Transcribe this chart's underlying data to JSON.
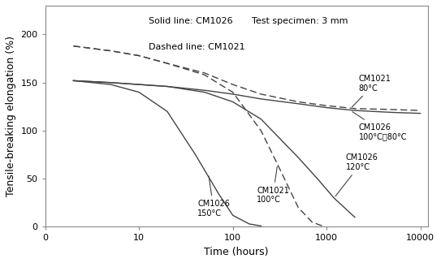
{
  "title_text1": "Solid line: CM1026",
  "title_text2": "Dashed line: CM1021",
  "title_text3": "Test specimen: 3 mm",
  "xlabel": "Time (hours)",
  "ylabel": "Tensile-breaking elongation (%)",
  "ylim": [
    0,
    230
  ],
  "yticks": [
    0,
    50,
    100,
    150,
    200
  ],
  "xticks": [
    1,
    10,
    100,
    1000,
    10000
  ],
  "xtick_labels": [
    "0",
    "10",
    "100",
    "1000",
    "10000"
  ],
  "background_color": "#ffffff",
  "line_color": "#444444",
  "cm1026_80_100_x": [
    2,
    5,
    10,
    20,
    50,
    100,
    200,
    500,
    1000,
    2000,
    5000,
    10000
  ],
  "cm1026_80_100_y": [
    152,
    150,
    148,
    146,
    142,
    138,
    133,
    128,
    124,
    121,
    119,
    118
  ],
  "cm1026_120_x": [
    2,
    5,
    10,
    20,
    50,
    100,
    200,
    500,
    800,
    1200,
    2000
  ],
  "cm1026_120_y": [
    152,
    150,
    148,
    146,
    140,
    130,
    112,
    72,
    50,
    30,
    10
  ],
  "cm1026_150_x": [
    2,
    5,
    10,
    20,
    40,
    70,
    100,
    150,
    200
  ],
  "cm1026_150_y": [
    152,
    148,
    140,
    120,
    75,
    35,
    12,
    3,
    1
  ],
  "cm1021_80_x": [
    2,
    5,
    10,
    20,
    50,
    100,
    200,
    500,
    1000,
    2000,
    5000,
    10000
  ],
  "cm1021_80_y": [
    188,
    183,
    178,
    170,
    160,
    148,
    138,
    130,
    126,
    123,
    122,
    121
  ],
  "cm1021_100_x": [
    2,
    5,
    10,
    20,
    50,
    100,
    200,
    300,
    500,
    700,
    900
  ],
  "cm1021_100_y": [
    188,
    183,
    178,
    170,
    158,
    140,
    100,
    65,
    20,
    5,
    1
  ]
}
